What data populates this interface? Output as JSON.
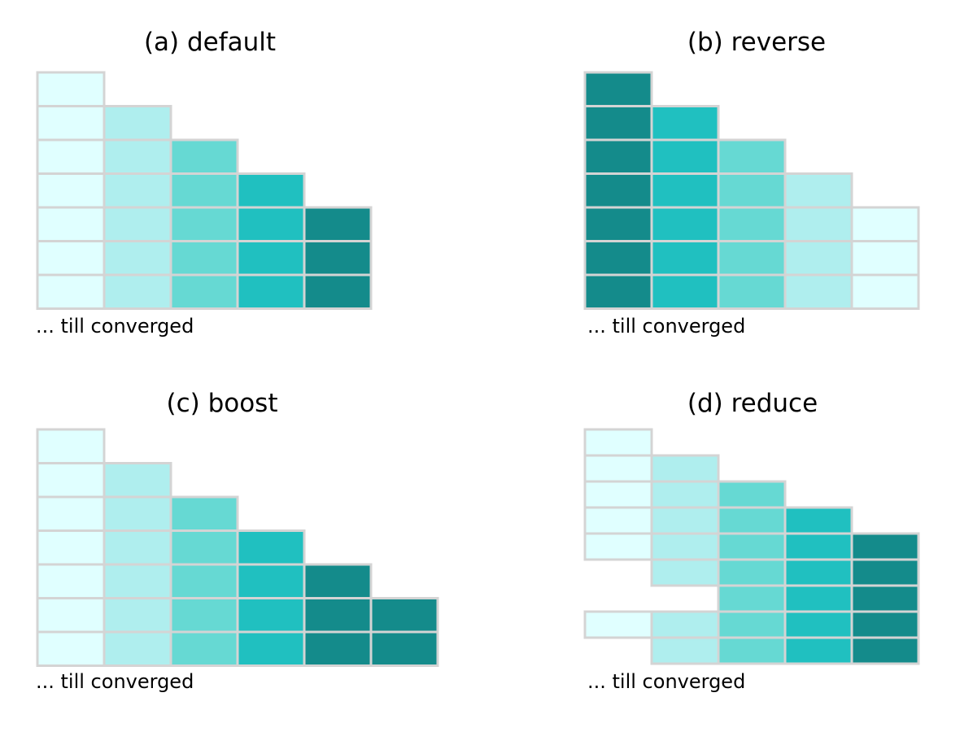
{
  "colors": {
    "level_1": "#e0ffff",
    "level_2": "#afeeee",
    "level_3": "#66d9d3",
    "level_4": "#20c0c0",
    "level_5": "#148b8b",
    "cell_border": "#d4d4d4"
  },
  "panels": [
    {
      "id": "a",
      "title": "(a) default",
      "footer": "... till converged",
      "rows": 7,
      "columns": [
        {
          "level": 1,
          "start_row": 0,
          "end_row": 7
        },
        {
          "level": 2,
          "start_row": 1,
          "end_row": 7
        },
        {
          "level": 3,
          "start_row": 2,
          "end_row": 7
        },
        {
          "level": 4,
          "start_row": 3,
          "end_row": 7
        },
        {
          "level": 5,
          "start_row": 4,
          "end_row": 7
        }
      ]
    },
    {
      "id": "b",
      "title": "(b) reverse",
      "footer": "... till converged",
      "rows": 7,
      "columns": [
        {
          "level": 5,
          "start_row": 0,
          "end_row": 7
        },
        {
          "level": 4,
          "start_row": 1,
          "end_row": 7
        },
        {
          "level": 3,
          "start_row": 2,
          "end_row": 7
        },
        {
          "level": 2,
          "start_row": 3,
          "end_row": 7
        },
        {
          "level": 1,
          "start_row": 4,
          "end_row": 7
        }
      ]
    },
    {
      "id": "c",
      "title": "(c) boost",
      "footer": "... till converged",
      "rows": 7,
      "columns": [
        {
          "level": 1,
          "start_row": 0,
          "end_row": 7
        },
        {
          "level": 2,
          "start_row": 1,
          "end_row": 7
        },
        {
          "level": 3,
          "start_row": 2,
          "end_row": 7
        },
        {
          "level": 4,
          "start_row": 3,
          "end_row": 7
        },
        {
          "level": 5,
          "start_row": 4,
          "end_row": 7
        },
        {
          "level": 5,
          "start_row": 5,
          "end_row": 7
        }
      ]
    },
    {
      "id": "d",
      "title": "(d) reduce",
      "footer": "... till converged",
      "rows": 9,
      "columns": [
        {
          "level": 1,
          "start_row": 0,
          "end_row": 5
        },
        {
          "level": 2,
          "start_row": 1,
          "end_row": 6
        },
        {
          "level": 3,
          "start_row": 2,
          "end_row": 7
        },
        {
          "level": 4,
          "start_row": 3,
          "end_row": 8
        },
        {
          "level": 5,
          "start_row": 4,
          "end_row": 9
        },
        {
          "level": 1,
          "start_row": 7,
          "end_row": 8,
          "column_index": 0
        },
        {
          "level": 2,
          "start_row": 7,
          "end_row": 9,
          "column_index": 1
        },
        {
          "level": 3,
          "start_row": 7,
          "end_row": 9,
          "column_index": 2
        },
        {
          "level": 4,
          "start_row": 8,
          "end_row": 9,
          "column_index": 3
        }
      ]
    }
  ]
}
